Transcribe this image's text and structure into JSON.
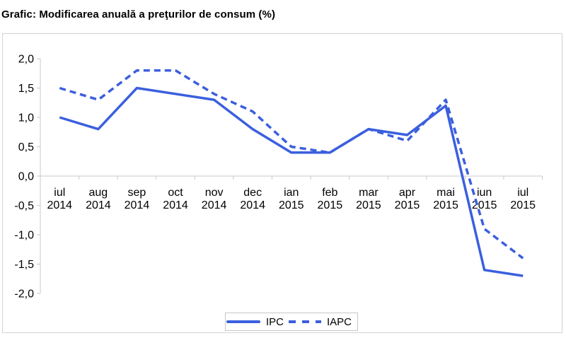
{
  "title": "Grafic: Modificarea anuală a preţurilor de consum (%)",
  "colors": {
    "series_line": "#3B5FDE",
    "axis_line": "#c9c9c9",
    "frame_border": "#d2d2d2",
    "text": "#000000",
    "background": "#ffffff"
  },
  "legend": {
    "items": [
      {
        "label": "IPC",
        "style": "solid"
      },
      {
        "label": "IAPC",
        "style": "dashed"
      }
    ]
  },
  "chart_data": {
    "type": "line",
    "title": "Grafic: Modificarea anuală a preţurilor de consum (%)",
    "categories": [
      "iul 2014",
      "aug 2014",
      "sep 2014",
      "oct 2014",
      "nov 2014",
      "dec 2014",
      "ian 2015",
      "feb 2015",
      "mar 2015",
      "apr 2015",
      "mai 2015",
      "iun 2015",
      "iul 2015"
    ],
    "series": [
      {
        "name": "IPC",
        "style": "solid",
        "values": [
          1.0,
          0.8,
          1.5,
          1.4,
          1.3,
          0.8,
          0.4,
          0.4,
          0.8,
          0.7,
          1.2,
          -1.6,
          -1.7
        ]
      },
      {
        "name": "IAPC",
        "style": "dashed",
        "values": [
          1.5,
          1.3,
          1.8,
          1.8,
          1.4,
          1.1,
          0.5,
          0.4,
          0.8,
          0.6,
          1.3,
          -0.9,
          -1.4
        ]
      }
    ],
    "ylim": [
      -2.0,
      2.0
    ],
    "ytick_step": 0.5,
    "yticks": [
      2.0,
      1.5,
      1.0,
      0.5,
      0.0,
      -0.5,
      -1.0,
      -1.5,
      -2.0
    ],
    "ytick_labels": [
      "2,0",
      "1,5",
      "1,0",
      "0,5",
      "0,0",
      "-0,5",
      "-1,0",
      "-1,5",
      "-2,0"
    ],
    "decimal_separator": ",",
    "xlabel": "",
    "ylabel": "",
    "grid": false,
    "legend_position": "bottom-center"
  }
}
